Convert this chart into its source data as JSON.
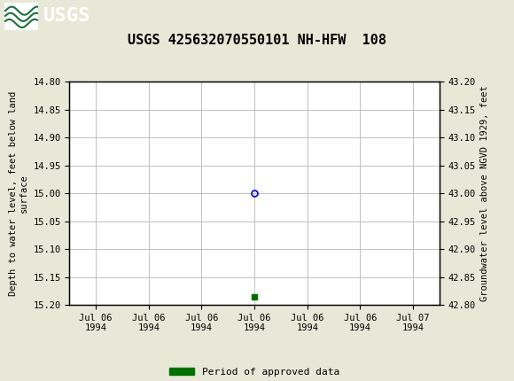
{
  "title": "USGS 425632070550101 NH-HFW  108",
  "title_fontsize": 11,
  "ylabel_left": "Depth to water level, feet below land\nsurface",
  "ylabel_right": "Groundwater level above NGVD 1929, feet",
  "ylim_left": [
    15.2,
    14.8
  ],
  "ylim_right": [
    42.8,
    43.2
  ],
  "yticks_left": [
    14.8,
    14.85,
    14.9,
    14.95,
    15.0,
    15.05,
    15.1,
    15.15,
    15.2
  ],
  "yticks_right": [
    42.8,
    42.85,
    42.9,
    42.95,
    43.0,
    43.05,
    43.1,
    43.15,
    43.2
  ],
  "data_point_value": 15.0,
  "data_point_marker": "o",
  "data_point_color": "#0000cc",
  "data_point_facecolor": "none",
  "data_point_size": 5,
  "green_square_value": 15.185,
  "green_square_color": "#007000",
  "green_square_size": 4,
  "header_color": "#1a6e3c",
  "bg_color": "#e8e8d8",
  "plot_bg_color": "#ffffff",
  "grid_color": "#c0c0c0",
  "font_family": "monospace",
  "legend_label": "Period of approved data",
  "legend_color": "#007000",
  "xtick_labels": [
    "Jul 06\n1994",
    "Jul 06\n1994",
    "Jul 06\n1994",
    "Jul 06\n1994",
    "Jul 06\n1994",
    "Jul 06\n1994",
    "Jul 07\n1994"
  ]
}
